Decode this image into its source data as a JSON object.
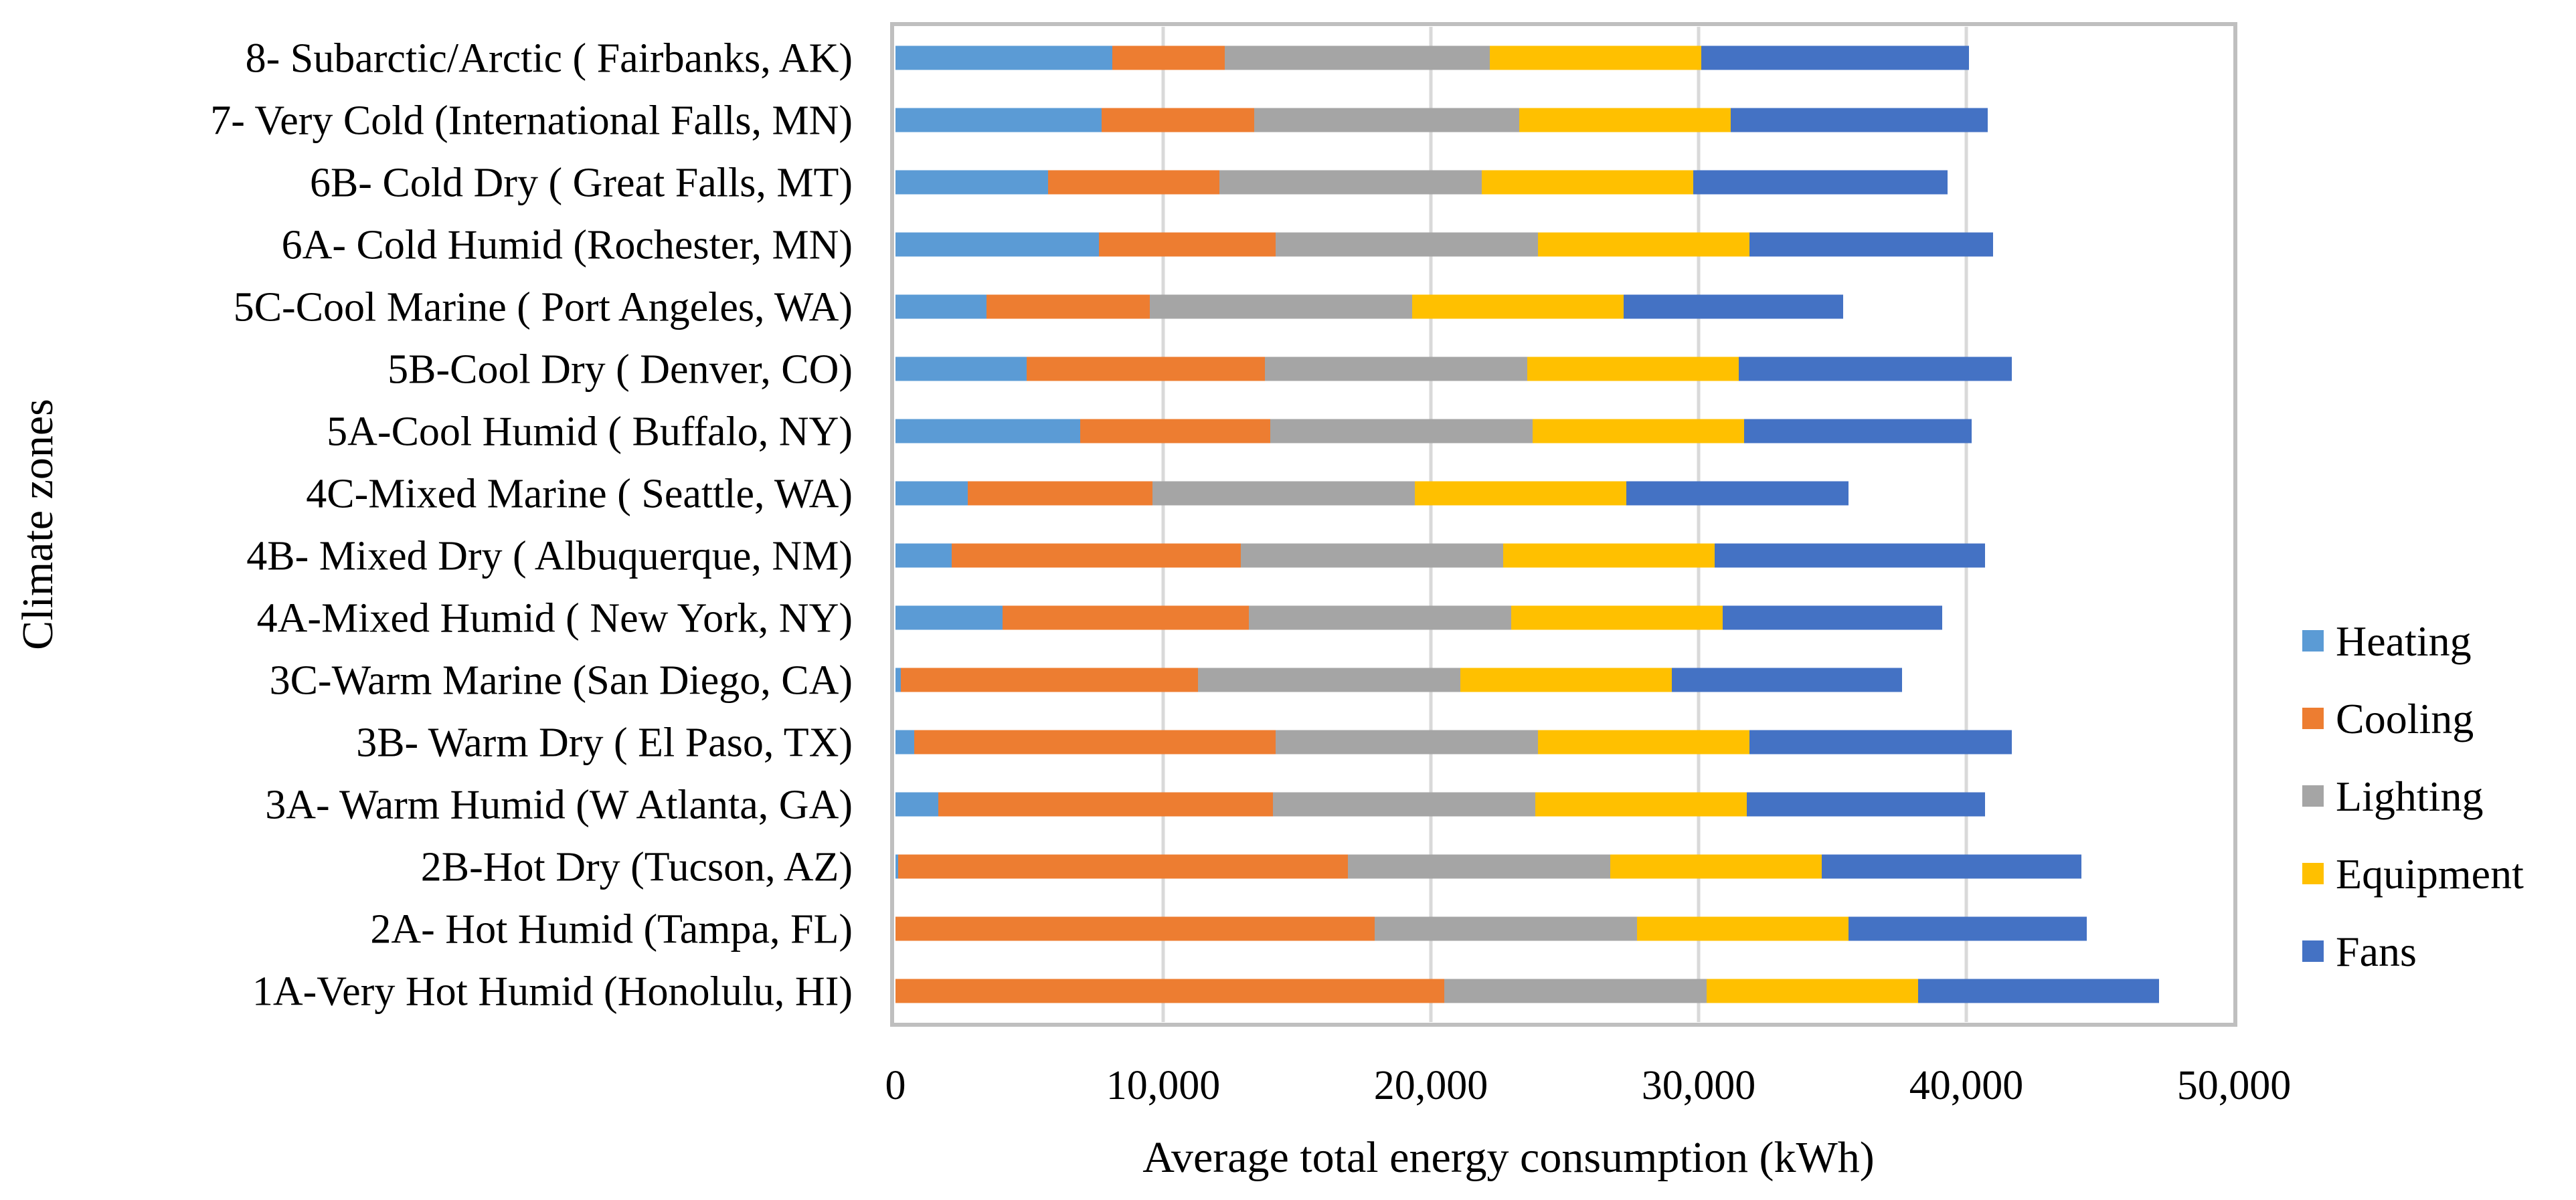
{
  "chart_data": {
    "type": "bar",
    "orientation": "horizontal",
    "stacked": true,
    "title": "",
    "xlabel": "Average total energy consumption (kWh)",
    "ylabel": "Climate zones",
    "xlim": [
      0,
      50000
    ],
    "xticks": [
      0,
      10000,
      20000,
      30000,
      40000,
      50000
    ],
    "xtick_labels": [
      "0",
      "10,000",
      "20,000",
      "30,000",
      "40,000",
      "50,000"
    ],
    "grid": "vertical",
    "legend_position": "right",
    "categories": [
      "8- Subarctic/Arctic ( Fairbanks, AK)",
      "7- Very Cold (International Falls, MN)",
      "6B- Cold Dry ( Great Falls, MT)",
      "6A- Cold Humid (Rochester, MN)",
      "5C-Cool Marine ( Port Angeles, WA)",
      "5B-Cool Dry ( Denver, CO)",
      "5A-Cool Humid ( Buffalo, NY)",
      "4C-Mixed Marine ( Seattle, WA)",
      "4B- Mixed Dry ( Albuquerque, NM)",
      "4A-Mixed Humid ( New York, NY)",
      "3C-Warm Marine (San Diego, CA)",
      "3B- Warm Dry ( El Paso, TX)",
      "3A- Warm Humid (W Atlanta, GA)",
      "2B-Hot Dry (Tucson, AZ)",
      "2A- Hot Humid (Tampa, FL)",
      "1A-Very Hot Humid (Honolulu, HI)"
    ],
    "series": [
      {
        "name": "Heating",
        "color": "#5B9BD5",
        "values": [
          8100,
          7700,
          5700,
          7600,
          3400,
          4900,
          6900,
          2700,
          2100,
          4000,
          200,
          700,
          1600,
          100,
          0,
          0
        ]
      },
      {
        "name": "Cooling",
        "color": "#ED7D31",
        "values": [
          4200,
          5700,
          6400,
          6600,
          6100,
          8900,
          7100,
          6900,
          10800,
          9200,
          11100,
          13500,
          12500,
          16800,
          17900,
          20500
        ]
      },
      {
        "name": "Lighting",
        "color": "#A5A5A5",
        "values": [
          9900,
          9900,
          9800,
          9800,
          9800,
          9800,
          9800,
          9800,
          9800,
          9800,
          9800,
          9800,
          9800,
          9800,
          9800,
          9800
        ]
      },
      {
        "name": "Equipment",
        "color": "#FFC000",
        "values": [
          7900,
          7900,
          7900,
          7900,
          7900,
          7900,
          7900,
          7900,
          7900,
          7900,
          7900,
          7900,
          7900,
          7900,
          7900,
          7900
        ]
      },
      {
        "name": "Fans",
        "color": "#4472C4",
        "values": [
          10000,
          9600,
          9500,
          9100,
          8200,
          10200,
          8500,
          8300,
          10100,
          8200,
          8600,
          9800,
          8900,
          9700,
          8900,
          9000
        ]
      }
    ]
  }
}
